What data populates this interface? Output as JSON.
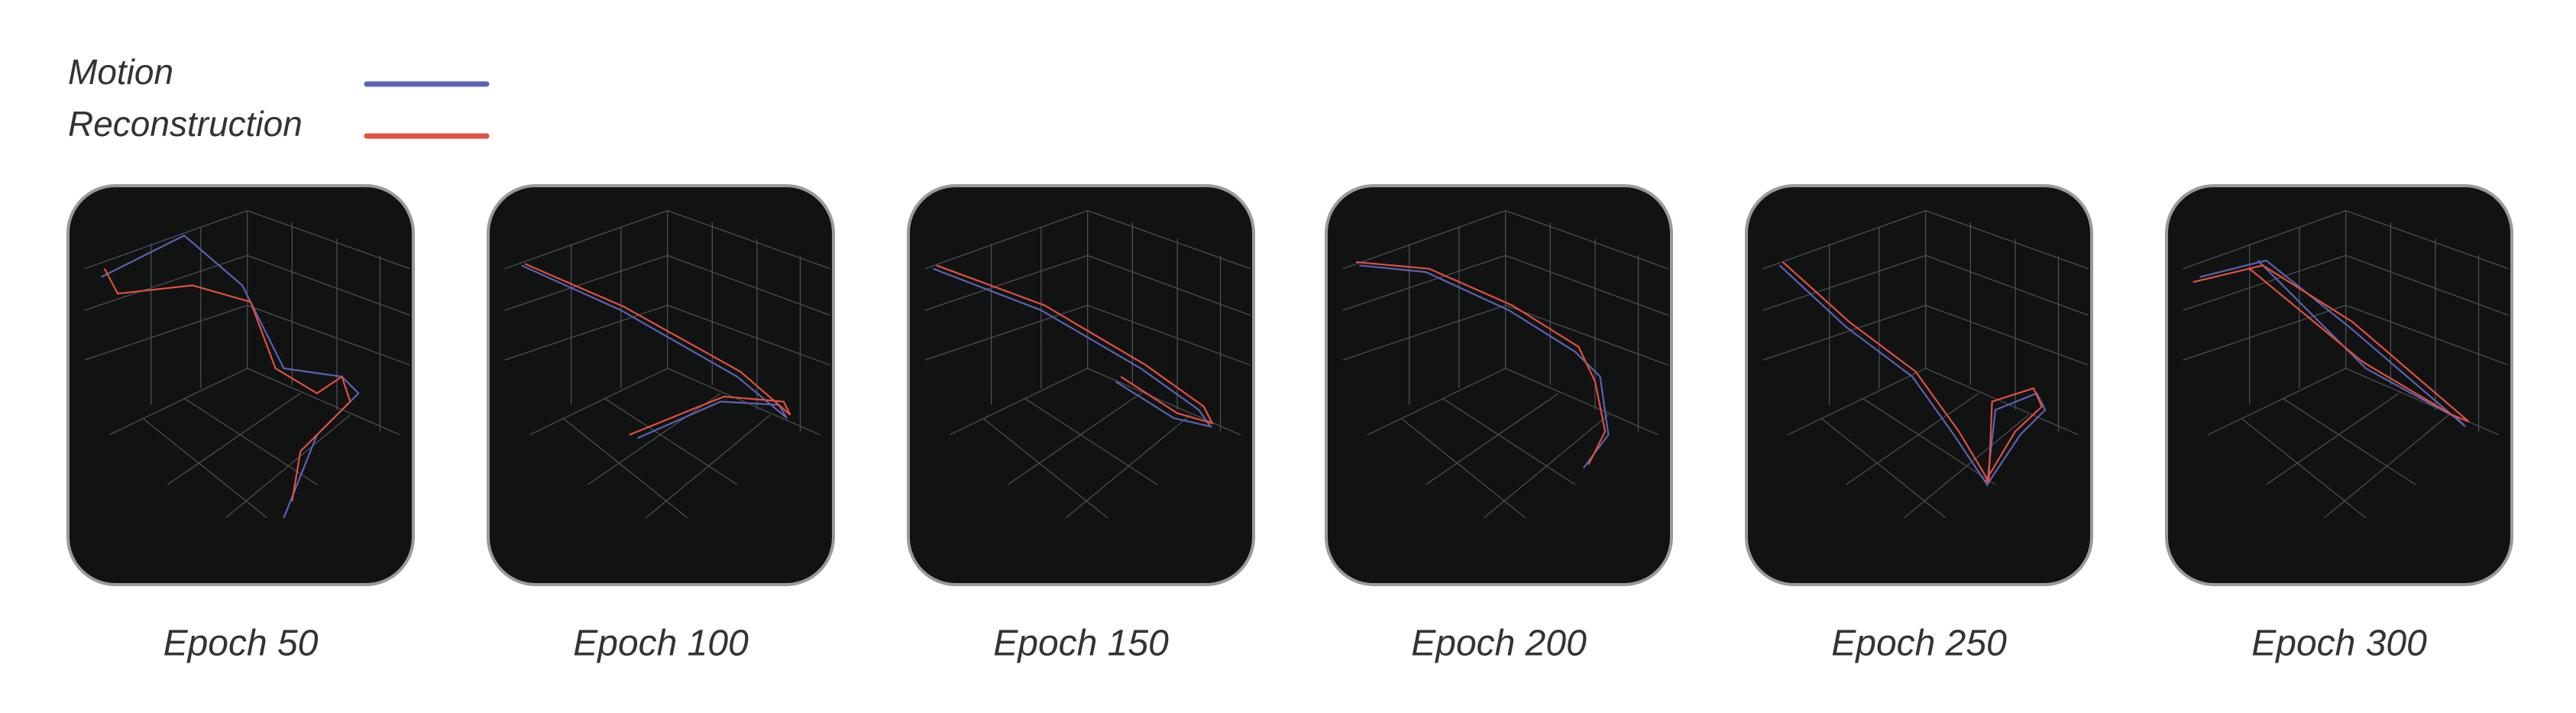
{
  "legend": [
    {
      "label": "Motion",
      "color": "#5a63b4"
    },
    {
      "label": "Reconstruction",
      "color": "#e2503f"
    }
  ],
  "panels": [
    {
      "caption": "Epoch 50"
    },
    {
      "caption": "Epoch 100"
    },
    {
      "caption": "Epoch 150"
    },
    {
      "caption": "Epoch 200"
    },
    {
      "caption": "Epoch 250"
    },
    {
      "caption": "Epoch 300"
    }
  ]
}
